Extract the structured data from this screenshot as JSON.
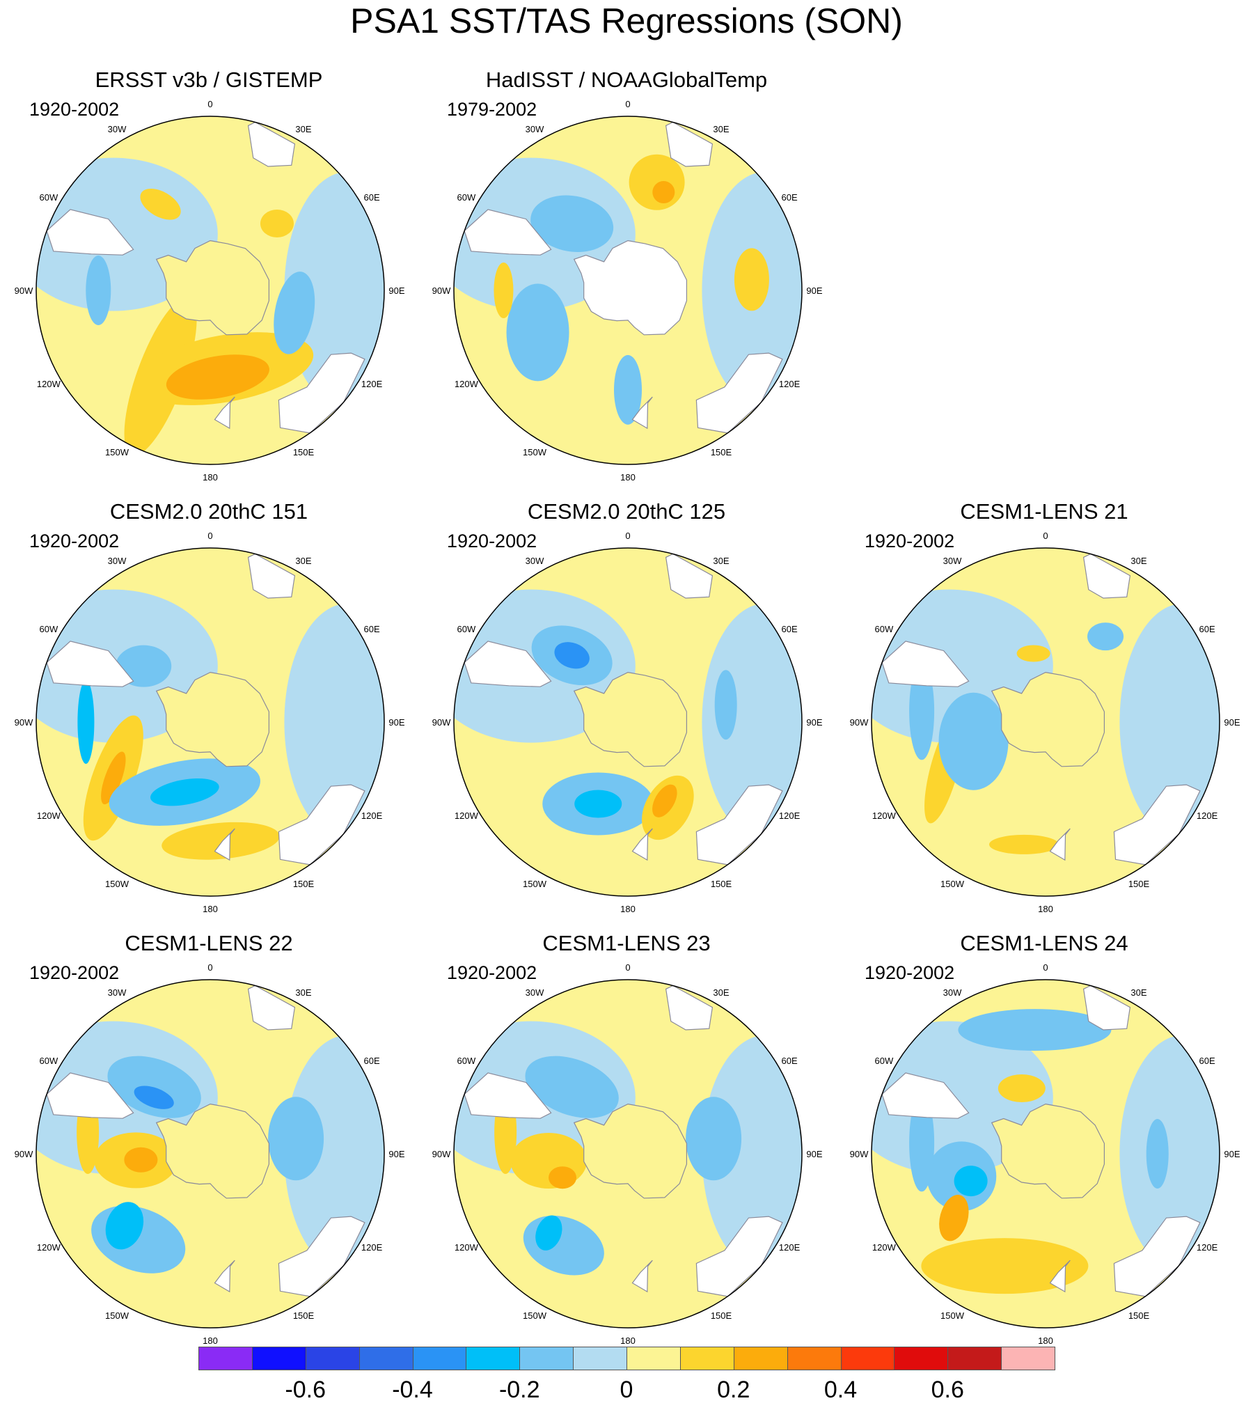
{
  "title": "PSA1 SST/TAS Regressions (SON)",
  "colors": {
    "neutral_neg": "#b3dcf1",
    "neutral_pos": "#fcf494",
    "land": "#ffffff",
    "coast": "#8a8a9a",
    "missing": "#ffffff"
  },
  "lon_labels": [
    "0",
    "30E",
    "60E",
    "90E",
    "120E",
    "150E",
    "180",
    "150W",
    "120W",
    "90W",
    "60W",
    "30W"
  ],
  "panels": [
    {
      "title": "ERSST v3b / GISTEMP",
      "period": "1920-2002",
      "icefree": false,
      "blobs": [
        {
          "color": "#fcd52e",
          "lon": 210,
          "lat": -50,
          "rx": 34,
          "ry": 120,
          "rot": 20
        },
        {
          "color": "#fcd52e",
          "lon": 170,
          "lat": -58,
          "rx": 130,
          "ry": 48,
          "rot": -10
        },
        {
          "color": "#fcac0c",
          "lon": 175,
          "lat": -55,
          "rx": 75,
          "ry": 30,
          "rot": -10
        },
        {
          "color": "#74c5f2",
          "lon": 105,
          "lat": -55,
          "rx": 28,
          "ry": 60,
          "rot": 10
        },
        {
          "color": "#74c5f2",
          "lon": 270,
          "lat": -45,
          "rx": 18,
          "ry": 50,
          "rot": 0
        },
        {
          "color": "#fcd52e",
          "lon": 330,
          "lat": -50,
          "rx": 32,
          "ry": 18,
          "rot": 30
        },
        {
          "color": "#fcd52e",
          "lon": 45,
          "lat": -52,
          "rx": 24,
          "ry": 20,
          "rot": 0
        }
      ]
    },
    {
      "title": "HadISST / NOAAGlobalTemp",
      "period": "1979-2002",
      "icefree": true,
      "blobs": [
        {
          "color": "#74c5f2",
          "lon": 320,
          "lat": -55,
          "rx": 60,
          "ry": 40,
          "rot": 10
        },
        {
          "color": "#74c5f2",
          "lon": 245,
          "lat": -50,
          "rx": 45,
          "ry": 70,
          "rot": 0
        },
        {
          "color": "#fcd52e",
          "lon": 15,
          "lat": -45,
          "rx": 40,
          "ry": 40,
          "rot": 0
        },
        {
          "color": "#fcac0c",
          "lon": 20,
          "lat": -48,
          "rx": 16,
          "ry": 16,
          "rot": 0
        },
        {
          "color": "#fcd52e",
          "lon": 85,
          "lat": -40,
          "rx": 25,
          "ry": 45,
          "rot": 0
        },
        {
          "color": "#fcd52e",
          "lon": 270,
          "lat": -40,
          "rx": 14,
          "ry": 40,
          "rot": 0
        },
        {
          "color": "#74c5f2",
          "lon": 180,
          "lat": -50,
          "rx": 20,
          "ry": 50,
          "rot": 0
        }
      ]
    },
    {
      "title": "CESM2.0 20thC 151",
      "period": "1920-2002",
      "icefree": false,
      "blobs": [
        {
          "color": "#fcd52e",
          "lon": 240,
          "lat": -45,
          "rx": 30,
          "ry": 95,
          "rot": 20
        },
        {
          "color": "#fcac0c",
          "lon": 240,
          "lat": -45,
          "rx": 12,
          "ry": 40,
          "rot": 20
        },
        {
          "color": "#74c5f2",
          "lon": 200,
          "lat": -60,
          "rx": 110,
          "ry": 45,
          "rot": -10
        },
        {
          "color": "#00bff8",
          "lon": 200,
          "lat": -60,
          "rx": 50,
          "ry": 18,
          "rot": -10
        },
        {
          "color": "#00bff8",
          "lon": 270,
          "lat": -40,
          "rx": 12,
          "ry": 60,
          "rot": 0
        },
        {
          "color": "#fcd52e",
          "lon": 175,
          "lat": -42,
          "rx": 85,
          "ry": 26,
          "rot": -5
        },
        {
          "color": "#74c5f2",
          "lon": 310,
          "lat": -55,
          "rx": 40,
          "ry": 30,
          "rot": 0
        }
      ]
    },
    {
      "title": "CESM2.0 20thC 125",
      "period": "1920-2002",
      "icefree": false,
      "blobs": [
        {
          "color": "#74c5f2",
          "lon": 320,
          "lat": -55,
          "rx": 60,
          "ry": 40,
          "rot": 20
        },
        {
          "color": "#2a93f5",
          "lon": 320,
          "lat": -55,
          "rx": 26,
          "ry": 18,
          "rot": 20
        },
        {
          "color": "#74c5f2",
          "lon": 200,
          "lat": -55,
          "rx": 80,
          "ry": 45,
          "rot": 0
        },
        {
          "color": "#00bff8",
          "lon": 200,
          "lat": -55,
          "rx": 34,
          "ry": 20,
          "rot": 0
        },
        {
          "color": "#fcd52e",
          "lon": 155,
          "lat": -52,
          "rx": 32,
          "ry": 50,
          "rot": 30
        },
        {
          "color": "#fcac0c",
          "lon": 155,
          "lat": -55,
          "rx": 14,
          "ry": 26,
          "rot": 30
        },
        {
          "color": "#74c5f2",
          "lon": 80,
          "lat": -50,
          "rx": 16,
          "ry": 50,
          "rot": 0
        }
      ]
    },
    {
      "title": "CESM1-LENS 21",
      "period": "1920-2002",
      "icefree": false,
      "blobs": [
        {
          "color": "#fcd52e",
          "lon": 245,
          "lat": -45,
          "rx": 20,
          "ry": 80,
          "rot": 15
        },
        {
          "color": "#74c5f2",
          "lon": 255,
          "lat": -60,
          "rx": 50,
          "ry": 70,
          "rot": 0
        },
        {
          "color": "#74c5f2",
          "lon": 275,
          "lat": -40,
          "rx": 18,
          "ry": 70,
          "rot": 0
        },
        {
          "color": "#fcd52e",
          "lon": 350,
          "lat": -62,
          "rx": 24,
          "ry": 12,
          "rot": 0
        },
        {
          "color": "#fcd52e",
          "lon": 190,
          "lat": -40,
          "rx": 50,
          "ry": 14,
          "rot": 0
        },
        {
          "color": "#74c5f2",
          "lon": 35,
          "lat": -48,
          "rx": 26,
          "ry": 20,
          "rot": 0
        }
      ]
    },
    {
      "title": "CESM1-LENS 22",
      "period": "1920-2002",
      "icefree": false,
      "blobs": [
        {
          "color": "#74c5f2",
          "lon": 320,
          "lat": -55,
          "rx": 70,
          "ry": 40,
          "rot": 20
        },
        {
          "color": "#2a93f5",
          "lon": 315,
          "lat": -58,
          "rx": 30,
          "ry": 14,
          "rot": 20
        },
        {
          "color": "#fcd52e",
          "lon": 265,
          "lat": -60,
          "rx": 60,
          "ry": 40,
          "rot": 0
        },
        {
          "color": "#fcac0c",
          "lon": 265,
          "lat": -62,
          "rx": 24,
          "ry": 18,
          "rot": 0
        },
        {
          "color": "#74c5f2",
          "lon": 220,
          "lat": -45,
          "rx": 70,
          "ry": 45,
          "rot": 20
        },
        {
          "color": "#00bff8",
          "lon": 230,
          "lat": -45,
          "rx": 26,
          "ry": 35,
          "rot": 20
        },
        {
          "color": "#74c5f2",
          "lon": 80,
          "lat": -55,
          "rx": 40,
          "ry": 60,
          "rot": 0
        },
        {
          "color": "#fcd52e",
          "lon": 280,
          "lat": -40,
          "rx": 16,
          "ry": 60,
          "rot": 0
        }
      ]
    },
    {
      "title": "CESM1-LENS 23",
      "period": "1920-2002",
      "icefree": false,
      "blobs": [
        {
          "color": "#74c5f2",
          "lon": 320,
          "lat": -55,
          "rx": 70,
          "ry": 40,
          "rot": 20
        },
        {
          "color": "#fcd52e",
          "lon": 265,
          "lat": -58,
          "rx": 55,
          "ry": 40,
          "rot": 0
        },
        {
          "color": "#fcac0c",
          "lon": 250,
          "lat": -62,
          "rx": 20,
          "ry": 16,
          "rot": 0
        },
        {
          "color": "#74c5f2",
          "lon": 215,
          "lat": -45,
          "rx": 60,
          "ry": 40,
          "rot": 20
        },
        {
          "color": "#00bff8",
          "lon": 225,
          "lat": -45,
          "rx": 18,
          "ry": 26,
          "rot": 20
        },
        {
          "color": "#74c5f2",
          "lon": 80,
          "lat": -55,
          "rx": 40,
          "ry": 60,
          "rot": 0
        },
        {
          "color": "#fcd52e",
          "lon": 280,
          "lat": -40,
          "rx": 16,
          "ry": 60,
          "rot": 0
        }
      ]
    },
    {
      "title": "CESM1-LENS 24",
      "period": "1920-2002",
      "icefree": false,
      "blobs": [
        {
          "color": "#74c5f2",
          "lon": 355,
          "lat": -40,
          "rx": 110,
          "ry": 30,
          "rot": 0
        },
        {
          "color": "#fcd52e",
          "lon": 340,
          "lat": -62,
          "rx": 34,
          "ry": 20,
          "rot": 0
        },
        {
          "color": "#74c5f2",
          "lon": 255,
          "lat": -55,
          "rx": 50,
          "ry": 50,
          "rot": 0
        },
        {
          "color": "#00bff8",
          "lon": 250,
          "lat": -58,
          "rx": 24,
          "ry": 22,
          "rot": 0
        },
        {
          "color": "#fcd52e",
          "lon": 200,
          "lat": -42,
          "rx": 120,
          "ry": 40,
          "rot": 0
        },
        {
          "color": "#fcac0c",
          "lon": 235,
          "lat": -45,
          "rx": 20,
          "ry": 34,
          "rot": 15
        },
        {
          "color": "#74c5f2",
          "lon": 275,
          "lat": -40,
          "rx": 18,
          "ry": 70,
          "rot": 0
        },
        {
          "color": "#74c5f2",
          "lon": 90,
          "lat": -45,
          "rx": 16,
          "ry": 50,
          "rot": 0
        }
      ]
    }
  ],
  "colorbar": {
    "colors": [
      "#8a2bf5",
      "#1010ff",
      "#2a44e6",
      "#2f6ee8",
      "#2a93f5",
      "#00bff8",
      "#74c5f2",
      "#b3dcf1",
      "#fcf494",
      "#fcd52e",
      "#fcac0c",
      "#fc7a0c",
      "#fc3a0c",
      "#e00c0c",
      "#c41a1a",
      "#fcb4b4"
    ],
    "labels": [
      "-0.6",
      "-0.4",
      "-0.2",
      "0",
      "0.2",
      "0.4",
      "0.6"
    ],
    "label_boundaries": [
      2,
      4,
      6,
      8,
      10,
      12,
      14
    ]
  }
}
